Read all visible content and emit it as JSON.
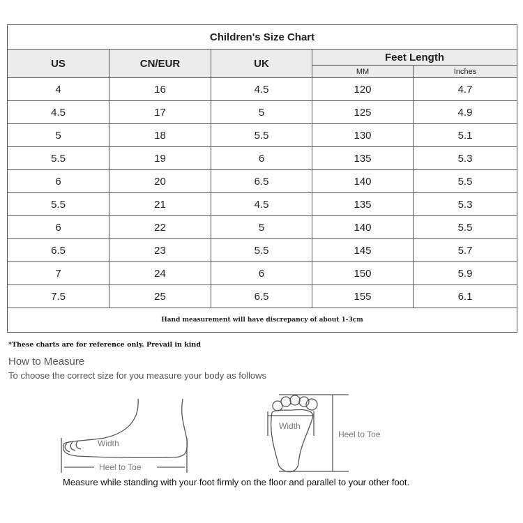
{
  "chart": {
    "title": "Children's Size Chart",
    "headers": [
      "US",
      "CN/EUR",
      "UK",
      "Feet Length"
    ],
    "subheaders": [
      "MM",
      "Inches"
    ],
    "rows": [
      [
        "4",
        "16",
        "4.5",
        "120",
        "4.7"
      ],
      [
        "4.5",
        "17",
        "5",
        "125",
        "4.9"
      ],
      [
        "5",
        "18",
        "5.5",
        "130",
        "5.1"
      ],
      [
        "5.5",
        "19",
        "6",
        "135",
        "5.3"
      ],
      [
        "6",
        "20",
        "6.5",
        "140",
        "5.5"
      ],
      [
        "5.5",
        "21",
        "4.5",
        "135",
        "5.3"
      ],
      [
        "6",
        "22",
        "5",
        "140",
        "5.5"
      ],
      [
        "6.5",
        "23",
        "5.5",
        "145",
        "5.7"
      ],
      [
        "7",
        "24",
        "6",
        "150",
        "5.9"
      ],
      [
        "7.5",
        "25",
        "6.5",
        "155",
        "6.1"
      ]
    ],
    "footer": "Hand measurement will have discrepancy of about 1-3cm"
  },
  "note": "*These charts are for reference only. Prevail in kind",
  "measure": {
    "title": "How to Measure",
    "subtitle": "To choose the correct size for you measure your body as follows",
    "side_width": "Width",
    "side_length": "Heel to Toe",
    "top_width": "Width",
    "top_length": "Heel to Toe",
    "caption": "Measure while standing with your foot firmly on the floor and parallel to your other foot."
  }
}
